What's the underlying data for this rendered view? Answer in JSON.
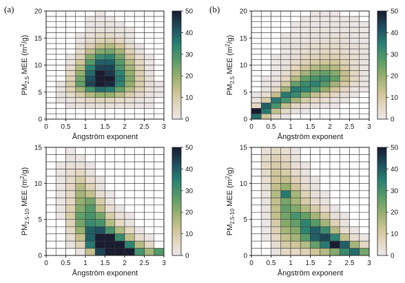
{
  "chart_data": [
    {
      "type": "heatmap",
      "panel_label": "(a)",
      "xlabel": "Ångström exponent",
      "ylabel_base": "PM",
      "ylabel_sub": "2.5",
      "ylabel_mid": " MEE  (m",
      "ylabel_sup": "2",
      "ylabel_end": "/g)",
      "xlim": [
        0,
        3
      ],
      "ylim": [
        0,
        20
      ],
      "x_bin": 0.25,
      "y_bin": 1,
      "xticks": [
        "0",
        "0.5",
        "1",
        "1.5",
        "2",
        "2.5",
        "3"
      ],
      "yticks": [
        "0",
        "5",
        "10",
        "15",
        "20"
      ],
      "colorbar": {
        "min": 0,
        "max": 50,
        "ticks": [
          "0",
          "10",
          "20",
          "30",
          "40",
          "50"
        ]
      },
      "grid": "on",
      "z": [
        [
          0,
          0,
          0,
          0,
          0,
          0,
          0,
          0,
          0,
          0,
          0,
          0
        ],
        [
          0,
          0,
          0,
          0,
          0,
          0,
          0,
          0,
          0,
          0,
          0,
          0
        ],
        [
          0,
          0,
          2,
          2,
          3,
          3,
          3,
          2,
          2,
          1,
          1,
          0
        ],
        [
          0,
          1,
          2,
          4,
          6,
          7,
          7,
          5,
          4,
          2,
          1,
          0
        ],
        [
          0,
          2,
          5,
          10,
          16,
          20,
          20,
          15,
          9,
          5,
          2,
          1
        ],
        [
          0,
          2,
          8,
          18,
          30,
          38,
          36,
          26,
          16,
          8,
          3,
          1
        ],
        [
          0,
          1,
          10,
          26,
          44,
          52,
          48,
          34,
          20,
          9,
          3,
          1
        ],
        [
          0,
          0,
          8,
          24,
          42,
          52,
          50,
          36,
          22,
          10,
          3,
          0
        ],
        [
          0,
          0,
          6,
          20,
          38,
          50,
          46,
          34,
          20,
          9,
          2,
          0
        ],
        [
          0,
          0,
          4,
          16,
          34,
          44,
          44,
          30,
          18,
          8,
          2,
          0
        ],
        [
          0,
          0,
          2,
          12,
          28,
          40,
          40,
          28,
          16,
          6,
          1,
          0
        ],
        [
          0,
          0,
          1,
          8,
          22,
          32,
          34,
          24,
          12,
          4,
          1,
          0
        ],
        [
          0,
          0,
          0,
          5,
          14,
          22,
          24,
          18,
          8,
          2,
          0,
          0
        ],
        [
          0,
          0,
          0,
          3,
          8,
          14,
          16,
          12,
          5,
          1,
          0,
          0
        ],
        [
          0,
          0,
          0,
          1,
          5,
          8,
          9,
          6,
          2,
          0,
          0,
          0
        ],
        [
          0,
          0,
          0,
          1,
          3,
          5,
          5,
          3,
          1,
          0,
          0,
          0
        ],
        [
          0,
          0,
          0,
          0,
          2,
          3,
          3,
          2,
          1,
          0,
          0,
          0
        ],
        [
          0,
          0,
          0,
          0,
          1,
          2,
          2,
          1,
          0,
          0,
          0,
          0
        ],
        [
          0,
          0,
          0,
          0,
          1,
          1,
          1,
          0,
          0,
          0,
          0,
          0
        ],
        [
          0,
          0,
          0,
          0,
          0,
          1,
          0,
          0,
          0,
          0,
          0,
          0
        ]
      ]
    },
    {
      "type": "heatmap",
      "panel_label": "(b)",
      "xlabel": "Ångström exponent",
      "ylabel_base": "PM",
      "ylabel_sub": "2.5",
      "ylabel_mid": " MEE  (m",
      "ylabel_sup": "2",
      "ylabel_end": "/g)",
      "xlim": [
        0,
        3
      ],
      "ylim": [
        0,
        20
      ],
      "x_bin": 0.25,
      "y_bin": 1,
      "xticks": [
        "0",
        "0.5",
        "1",
        "1.5",
        "2",
        "2.5",
        "3"
      ],
      "yticks": [
        "0",
        "5",
        "10",
        "15",
        "20"
      ],
      "colorbar": {
        "min": 0,
        "max": 50,
        "ticks": [
          "0",
          "10",
          "20",
          "30",
          "40",
          "50"
        ]
      },
      "grid": "on",
      "z": [
        [
          38,
          12,
          4,
          1,
          0,
          0,
          0,
          0,
          0,
          0,
          0,
          0
        ],
        [
          52,
          36,
          14,
          5,
          2,
          1,
          0,
          0,
          0,
          0,
          0,
          0
        ],
        [
          6,
          40,
          30,
          14,
          6,
          3,
          2,
          1,
          1,
          0,
          0,
          0
        ],
        [
          2,
          10,
          36,
          30,
          18,
          10,
          6,
          4,
          2,
          1,
          0,
          0
        ],
        [
          1,
          4,
          14,
          36,
          32,
          22,
          14,
          9,
          6,
          3,
          1,
          0
        ],
        [
          0,
          2,
          6,
          18,
          36,
          34,
          28,
          20,
          12,
          6,
          2,
          1
        ],
        [
          0,
          1,
          3,
          10,
          26,
          32,
          34,
          28,
          18,
          10,
          4,
          1
        ],
        [
          0,
          1,
          2,
          6,
          16,
          26,
          30,
          32,
          26,
          14,
          6,
          2
        ],
        [
          0,
          0,
          1,
          4,
          10,
          18,
          24,
          26,
          22,
          14,
          6,
          2
        ],
        [
          0,
          0,
          1,
          3,
          7,
          12,
          16,
          18,
          16,
          10,
          5,
          2
        ],
        [
          0,
          0,
          1,
          2,
          5,
          8,
          10,
          12,
          12,
          8,
          4,
          2
        ],
        [
          0,
          0,
          1,
          2,
          3,
          6,
          7,
          8,
          8,
          6,
          4,
          2
        ],
        [
          0,
          0,
          0,
          1,
          3,
          4,
          5,
          6,
          6,
          5,
          3,
          2
        ],
        [
          0,
          0,
          0,
          1,
          2,
          3,
          4,
          5,
          5,
          4,
          3,
          2
        ],
        [
          0,
          0,
          0,
          1,
          2,
          2,
          3,
          3,
          4,
          3,
          2,
          1
        ],
        [
          0,
          0,
          0,
          1,
          1,
          2,
          2,
          3,
          3,
          3,
          2,
          1
        ],
        [
          0,
          0,
          0,
          0,
          1,
          1,
          2,
          2,
          2,
          2,
          2,
          1
        ],
        [
          0,
          0,
          0,
          0,
          1,
          1,
          1,
          1,
          2,
          2,
          1,
          1
        ],
        [
          0,
          0,
          0,
          0,
          0,
          1,
          1,
          1,
          1,
          1,
          1,
          0
        ],
        [
          0,
          0,
          0,
          0,
          0,
          0,
          1,
          1,
          1,
          0,
          0,
          0
        ]
      ]
    },
    {
      "type": "heatmap",
      "panel_label": "",
      "xlabel": "Ångström exponent",
      "ylabel_base": "PM",
      "ylabel_sub": "2.5-10",
      "ylabel_mid": " MEE  (m",
      "ylabel_sup": "2",
      "ylabel_end": "/g)",
      "xlim": [
        0,
        3
      ],
      "ylim": [
        0,
        15
      ],
      "x_bin": 0.25,
      "y_bin": 1,
      "xticks": [
        "0",
        "0.5",
        "1",
        "1.5",
        "2",
        "2.5",
        "3"
      ],
      "yticks": [
        "0",
        "5",
        "10",
        "15"
      ],
      "colorbar": {
        "min": 0,
        "max": 50,
        "ticks": [
          "0",
          "10",
          "20",
          "30",
          "40",
          "50"
        ]
      },
      "grid": "on",
      "z": [
        [
          0,
          0,
          0,
          2,
          14,
          44,
          56,
          56,
          50,
          30,
          18,
          28
        ],
        [
          0,
          0,
          2,
          8,
          36,
          54,
          56,
          52,
          34,
          16,
          6,
          0
        ],
        [
          0,
          0,
          4,
          14,
          40,
          52,
          50,
          32,
          14,
          4,
          1,
          0
        ],
        [
          0,
          0,
          6,
          20,
          40,
          42,
          30,
          16,
          6,
          1,
          0,
          0
        ],
        [
          0,
          0,
          8,
          24,
          32,
          30,
          16,
          6,
          2,
          0,
          0,
          0
        ],
        [
          0,
          1,
          10,
          26,
          30,
          24,
          10,
          3,
          1,
          0,
          0,
          0
        ],
        [
          0,
          1,
          8,
          22,
          28,
          14,
          4,
          1,
          0,
          0,
          0,
          0
        ],
        [
          0,
          1,
          6,
          20,
          24,
          10,
          2,
          0,
          0,
          0,
          0,
          0
        ],
        [
          0,
          1,
          6,
          18,
          14,
          4,
          1,
          0,
          0,
          0,
          0,
          0
        ],
        [
          0,
          1,
          6,
          16,
          8,
          2,
          0,
          0,
          0,
          0,
          0,
          0
        ],
        [
          0,
          1,
          5,
          10,
          4,
          1,
          0,
          0,
          0,
          0,
          0,
          0
        ],
        [
          0,
          1,
          4,
          6,
          2,
          0,
          0,
          0,
          0,
          0,
          0,
          0
        ],
        [
          0,
          1,
          3,
          3,
          1,
          0,
          0,
          0,
          0,
          0,
          0,
          0
        ],
        [
          0,
          0,
          2,
          1,
          0,
          0,
          0,
          0,
          0,
          0,
          0,
          0
        ],
        [
          0,
          0,
          1,
          0,
          0,
          0,
          0,
          0,
          0,
          0,
          0,
          0
        ]
      ]
    },
    {
      "type": "heatmap",
      "panel_label": "",
      "xlabel": "Ångström exponent",
      "ylabel_base": "PM",
      "ylabel_sub": "2.5-10",
      "ylabel_mid": " MEE  (m",
      "ylabel_sup": "2",
      "ylabel_end": "/g)",
      "xlim": [
        0,
        3
      ],
      "ylim": [
        0,
        15
      ],
      "x_bin": 0.25,
      "y_bin": 1,
      "xticks": [
        "0",
        "0.5",
        "1",
        "1.5",
        "2",
        "2.5",
        "3"
      ],
      "yticks": [
        "0",
        "5",
        "10",
        "15"
      ],
      "colorbar": {
        "min": 0,
        "max": 50,
        "ticks": [
          "0",
          "10",
          "20",
          "30",
          "40",
          "50"
        ]
      },
      "grid": "on",
      "z": [
        [
          0,
          0,
          2,
          6,
          6,
          8,
          12,
          16,
          22,
          32,
          38,
          24
        ],
        [
          0,
          0,
          4,
          10,
          12,
          16,
          26,
          36,
          50,
          40,
          18,
          6
        ],
        [
          0,
          1,
          6,
          14,
          18,
          28,
          40,
          44,
          34,
          14,
          4,
          1
        ],
        [
          0,
          1,
          8,
          18,
          22,
          34,
          40,
          32,
          16,
          4,
          1,
          0
        ],
        [
          0,
          1,
          10,
          22,
          26,
          34,
          28,
          18,
          8,
          2,
          0,
          0
        ],
        [
          0,
          2,
          14,
          24,
          30,
          26,
          18,
          10,
          3,
          1,
          0,
          0
        ],
        [
          0,
          2,
          14,
          26,
          22,
          16,
          10,
          4,
          1,
          0,
          0,
          0
        ],
        [
          0,
          2,
          14,
          24,
          18,
          10,
          5,
          2,
          0,
          0,
          0,
          0
        ],
        [
          0,
          2,
          16,
          36,
          18,
          8,
          3,
          1,
          0,
          0,
          0,
          0
        ],
        [
          0,
          3,
          14,
          20,
          12,
          5,
          2,
          0,
          0,
          0,
          0,
          0
        ],
        [
          0,
          4,
          12,
          14,
          8,
          3,
          1,
          0,
          0,
          0,
          0,
          0
        ],
        [
          0,
          5,
          12,
          10,
          5,
          2,
          0,
          0,
          0,
          0,
          0,
          0
        ],
        [
          0,
          6,
          10,
          8,
          3,
          1,
          0,
          0,
          0,
          0,
          0,
          0
        ],
        [
          0,
          5,
          8,
          6,
          2,
          0,
          0,
          0,
          0,
          0,
          0,
          0
        ],
        [
          0,
          3,
          6,
          4,
          1,
          0,
          0,
          0,
          0,
          0,
          0,
          0
        ]
      ]
    }
  ]
}
